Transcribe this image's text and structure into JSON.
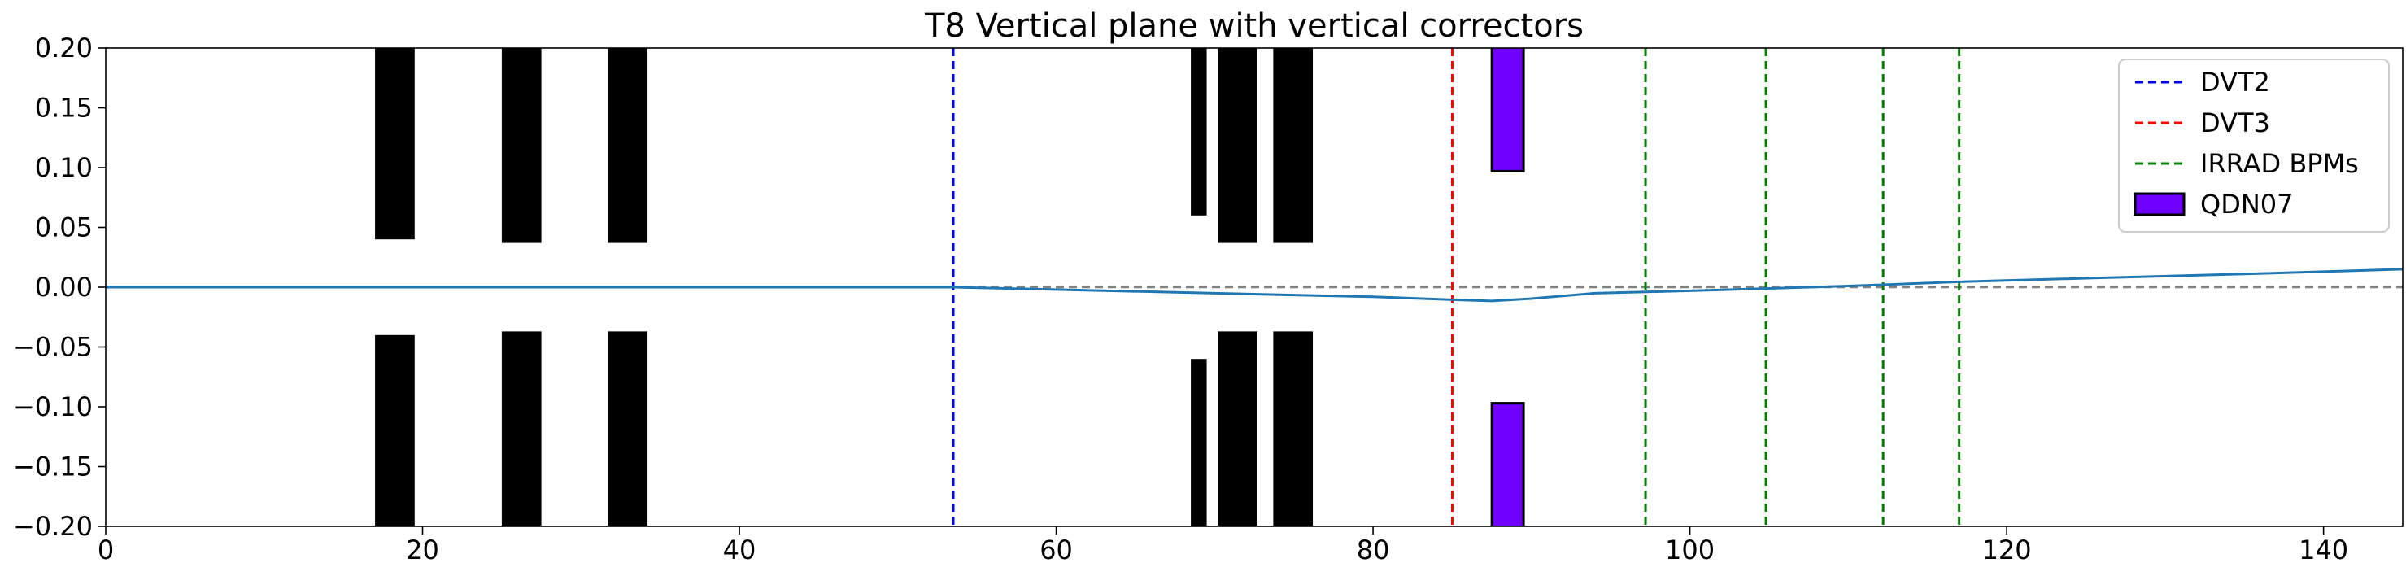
{
  "chart_data": {
    "type": "line",
    "title": "T8 Vertical plane with vertical correctors",
    "xlabel": "",
    "ylabel": "",
    "xlim": [
      0,
      145
    ],
    "ylim": [
      -0.2,
      0.2
    ],
    "xticks": [
      0,
      20,
      40,
      60,
      80,
      100,
      120,
      140
    ],
    "xtick_labels": [
      "0",
      "20",
      "40",
      "60",
      "80",
      "100",
      "120",
      "140"
    ],
    "yticks": [
      -0.2,
      -0.15,
      -0.1,
      -0.05,
      0.0,
      0.05,
      0.1,
      0.15,
      0.2
    ],
    "ytick_labels": [
      "−0.20",
      "−0.15",
      "−0.10",
      "−0.05",
      "0.00",
      "0.05",
      "0.10",
      "0.15",
      "0.20"
    ],
    "grid": false,
    "legend_position": "top-right",
    "zero_line": {
      "y": 0.0,
      "color": "#808080",
      "style": "dashed"
    },
    "trajectory": {
      "color": "#1f77b4",
      "x": [
        0,
        20,
        40,
        53.5,
        60,
        70,
        80,
        85,
        87.5,
        90,
        94,
        100,
        105,
        110,
        112,
        117,
        125,
        135,
        145
      ],
      "y": [
        0.0,
        0.0,
        0.0,
        0.0,
        -0.002,
        -0.005,
        -0.008,
        -0.0105,
        -0.0115,
        -0.0095,
        -0.005,
        -0.003,
        -0.001,
        0.001,
        0.002,
        0.0045,
        0.0075,
        0.011,
        0.015
      ]
    },
    "apertures": {
      "color": "#000000",
      "items": [
        {
          "x0": 17.0,
          "x1": 19.5,
          "y_top": 0.04,
          "y_bottom": -0.04
        },
        {
          "x0": 25.0,
          "x1": 27.5,
          "y_top": 0.037,
          "y_bottom": -0.037
        },
        {
          "x0": 31.7,
          "x1": 34.2,
          "y_top": 0.037,
          "y_bottom": -0.037
        },
        {
          "x0": 68.5,
          "x1": 69.5,
          "y_top": 0.06,
          "y_bottom": -0.06
        },
        {
          "x0": 70.2,
          "x1": 72.7,
          "y_top": 0.037,
          "y_bottom": -0.037
        },
        {
          "x0": 73.7,
          "x1": 76.2,
          "y_top": 0.037,
          "y_bottom": -0.037
        }
      ]
    },
    "qdn07": {
      "label": "QDN07",
      "color": "#7000ff",
      "edge": "#000000",
      "x0": 87.5,
      "x1": 89.5,
      "y_top": 0.097,
      "y_bottom": -0.097
    },
    "vlines": [
      {
        "series": "DVT2",
        "x": 53.5,
        "color": "#0000ff"
      },
      {
        "series": "DVT3",
        "x": 85.0,
        "color": "#ff0000"
      },
      {
        "series": "IRRAD BPMs",
        "x": 97.2,
        "color": "#008000"
      },
      {
        "series": "IRRAD BPMs",
        "x": 104.8,
        "color": "#008000"
      },
      {
        "series": "IRRAD BPMs",
        "x": 112.2,
        "color": "#008000"
      },
      {
        "series": "IRRAD BPMs",
        "x": 117.0,
        "color": "#008000"
      }
    ],
    "legend": [
      {
        "label": "DVT2",
        "kind": "dashed-line",
        "color": "#0000ff"
      },
      {
        "label": "DVT3",
        "kind": "dashed-line",
        "color": "#ff0000"
      },
      {
        "label": "IRRAD BPMs",
        "kind": "dashed-line",
        "color": "#008000"
      },
      {
        "label": "QDN07",
        "kind": "patch",
        "color": "#7000ff"
      }
    ]
  }
}
